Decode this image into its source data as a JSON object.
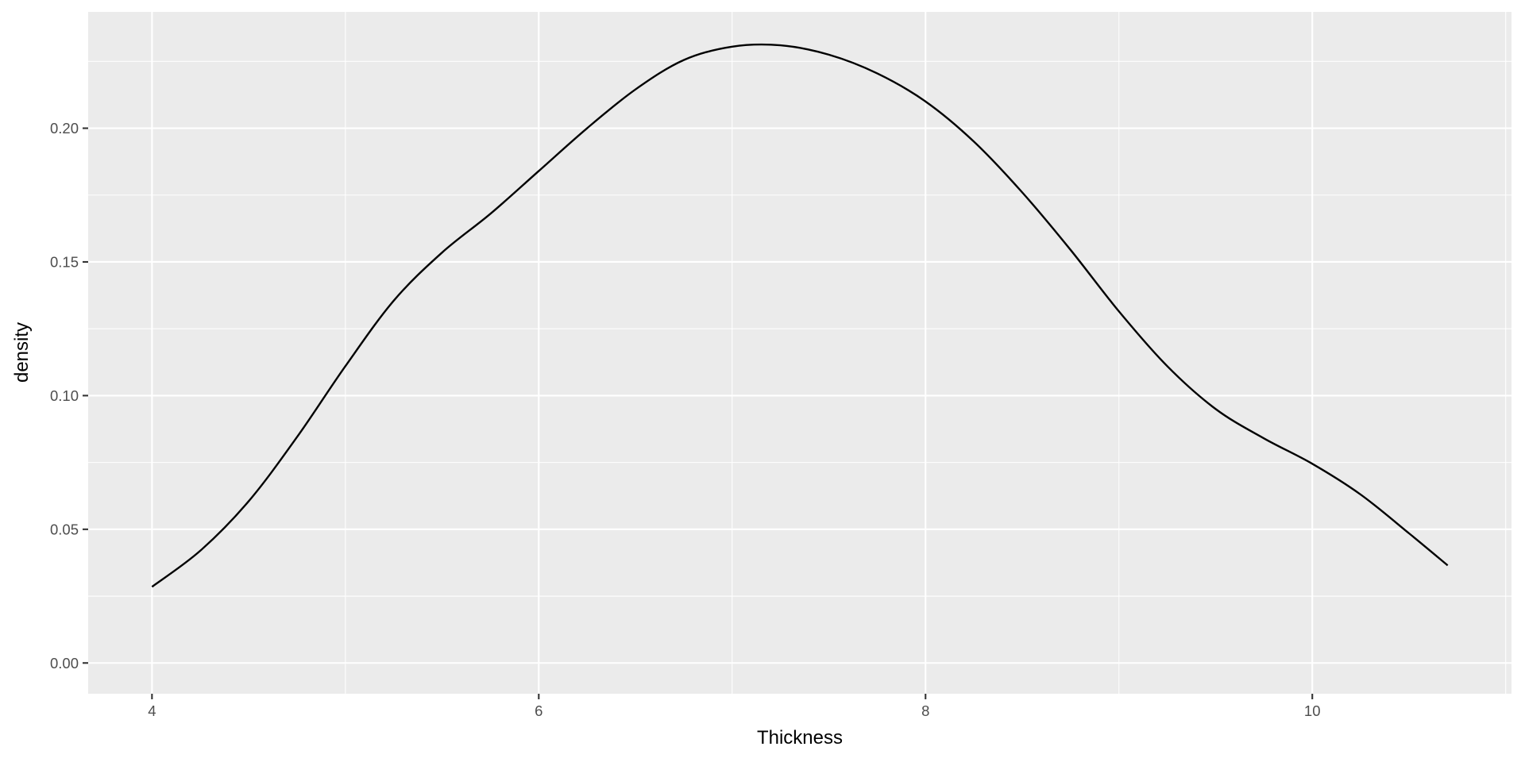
{
  "chart_data": {
    "type": "line",
    "title": "",
    "xlabel": "Thickness",
    "ylabel": "density",
    "xlim": [
      3.67,
      11.03
    ],
    "ylim": [
      -0.0115,
      0.2435
    ],
    "x_major_ticks": [
      4,
      6,
      8,
      10
    ],
    "x_minor_ticks": [
      5,
      7,
      9,
      11
    ],
    "x_tick_labels": [
      "4",
      "6",
      "8",
      "10"
    ],
    "y_major_ticks": [
      0.0,
      0.05,
      0.1,
      0.15,
      0.2
    ],
    "y_minor_ticks": [
      0.025,
      0.075,
      0.125,
      0.175,
      0.225
    ],
    "y_tick_labels": [
      "0.00",
      "0.05",
      "0.10",
      "0.15",
      "0.20"
    ],
    "grid": true,
    "series": [
      {
        "name": "density",
        "color": "#000000",
        "x": [
          4.0,
          4.25,
          4.5,
          4.75,
          5.0,
          5.25,
          5.5,
          5.75,
          6.0,
          6.25,
          6.5,
          6.75,
          7.0,
          7.25,
          7.5,
          7.75,
          8.0,
          8.25,
          8.5,
          8.75,
          9.0,
          9.25,
          9.5,
          9.75,
          10.0,
          10.25,
          10.5,
          10.7
        ],
        "y": [
          0.0285,
          0.042,
          0.0605,
          0.0845,
          0.111,
          0.1355,
          0.1535,
          0.168,
          0.184,
          0.2,
          0.2145,
          0.2255,
          0.2305,
          0.231,
          0.2275,
          0.2205,
          0.21,
          0.195,
          0.176,
          0.1545,
          0.1315,
          0.111,
          0.095,
          0.084,
          0.0745,
          0.063,
          0.0485,
          0.0365
        ]
      }
    ]
  }
}
